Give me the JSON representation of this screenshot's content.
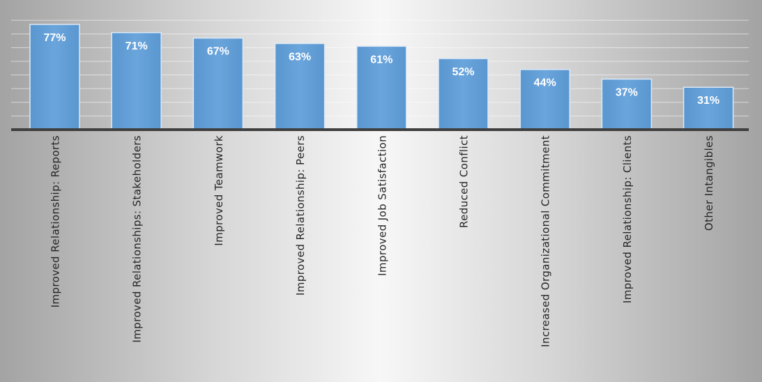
{
  "chart_data": {
    "type": "bar",
    "categories": [
      "Improved Relationship: Reports",
      "Improved Relationships: Stakeholders",
      "Improved Teamwork",
      "Improved Relationship: Peers",
      "Improved Job Satisfaction",
      "Reduced Conflict",
      "Increased Organizational Commitment",
      "Improved Relationship: Clients",
      "Other Intangibles"
    ],
    "values": [
      77,
      71,
      67,
      63,
      61,
      52,
      44,
      37,
      31
    ],
    "data_labels": [
      "77%",
      "71%",
      "67%",
      "63%",
      "61%",
      "52%",
      "44%",
      "37%",
      "31%"
    ],
    "unit": "%",
    "ylim": [
      0,
      80
    ],
    "grid": true,
    "legend": "none",
    "bar_color": "#5b9bd5",
    "bar_outline_color": "#dde9f5",
    "axis_color": "#3f3f3f",
    "label_color": "#ffffff"
  }
}
